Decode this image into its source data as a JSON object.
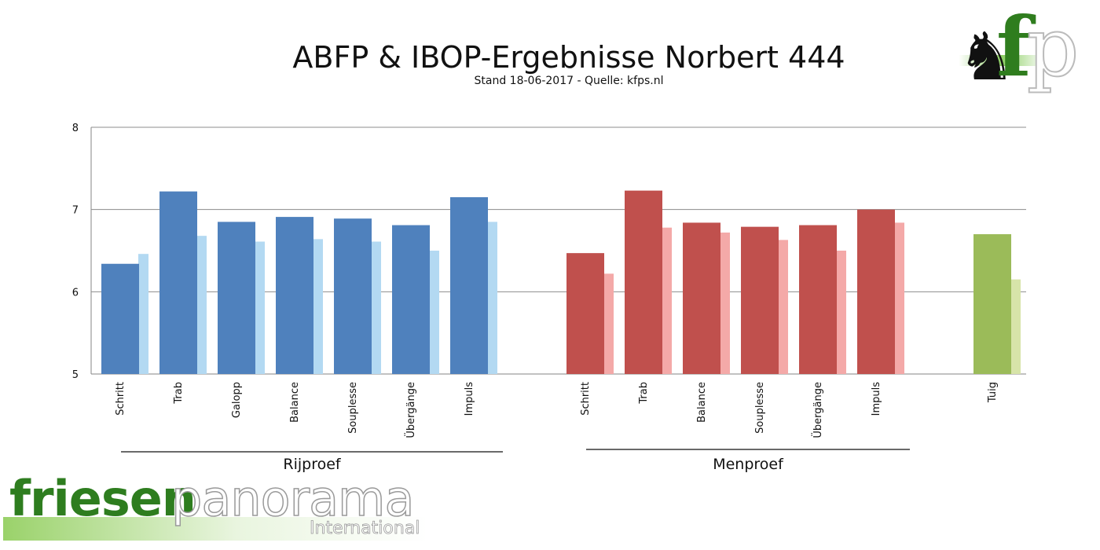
{
  "chart_data": {
    "type": "bar",
    "title": "ABFP & IBOP-Ergebnisse Norbert 444",
    "subtitle": "Stand 18-06-2017 - Quelle: kfps.nl",
    "ylim": [
      5,
      8
    ],
    "yticks": [
      5,
      6,
      7,
      8
    ],
    "grid": true,
    "groups": [
      {
        "label": "Rijproef",
        "color": "#4f81bd",
        "light_color": "#b3d9f2",
        "categories": [
          "Schritt",
          "Trab",
          "Galopp",
          "Balance",
          "Souplesse",
          "Übergänge",
          "Impuls"
        ],
        "values": [
          6.34,
          7.22,
          6.85,
          6.91,
          6.89,
          6.81,
          7.15
        ],
        "compare_values": [
          6.46,
          6.68,
          6.61,
          6.64,
          6.61,
          6.5,
          6.85
        ]
      },
      {
        "label": "Menproef",
        "color": "#c0504d",
        "light_color": "#f4a9a8",
        "categories": [
          "Schritt",
          "Trab",
          "Balance",
          "Souplesse",
          "Übergänge",
          "Impuls"
        ],
        "values": [
          6.47,
          7.23,
          6.84,
          6.79,
          6.81,
          7.0
        ],
        "compare_values": [
          6.22,
          6.78,
          6.72,
          6.63,
          6.5,
          6.84
        ]
      },
      {
        "label": "",
        "color": "#9bbb59",
        "light_color": "#d7e4a9",
        "categories": [
          "Tuig"
        ],
        "values": [
          6.7
        ],
        "compare_values": [
          6.15
        ]
      }
    ]
  },
  "logos": {
    "top_right": {
      "letters_f": "f",
      "letters_p": "p",
      "icon": "horse-icon"
    },
    "bottom_left": {
      "word1": "friesen",
      "word2": "panorama",
      "word3": "International"
    }
  }
}
